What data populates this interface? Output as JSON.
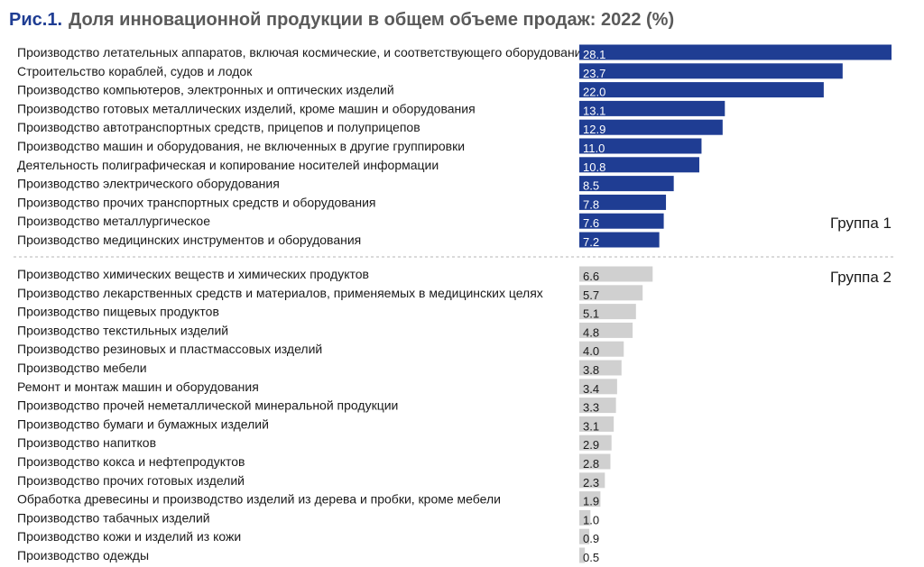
{
  "figure": {
    "number": "Рис.1.",
    "title": "Доля инновационной продукции в общем объеме продаж: 2022 (%)"
  },
  "colors": {
    "group1": "#1f3d93",
    "group2": "#d0d0d0",
    "title_number": "#1f3d93",
    "title_text": "#5a5a5a"
  },
  "chart_data": {
    "type": "bar",
    "orientation": "horizontal",
    "title": "Доля инновационной продукции в общем объеме продаж: 2022 (%)",
    "groups": [
      {
        "name": "Группа 1",
        "color": "#1f3d93",
        "categories": [
          "Производство летательных аппаратов, включая космические, и соответствующего оборудования",
          "Строительство кораблей, судов и лодок",
          "Производство компьютеров, электронных и оптических изделий",
          "Производство готовых металлических изделий, кроме машин и оборудования",
          "Производство автотранспортных средств, прицепов и полуприцепов",
          "Производство машин и оборудования, не включенных в другие группировки",
          "Деятельность полиграфическая и копирование носителей информации",
          "Производство электрического оборудования",
          "Производство прочих транспортных средств и оборудования",
          "Производство металлургическое",
          "Производство медицинских инструментов и оборудования"
        ],
        "values": [
          28.1,
          23.7,
          22.0,
          13.1,
          12.9,
          11.0,
          10.8,
          8.5,
          7.8,
          7.6,
          7.2
        ]
      },
      {
        "name": "Группа 2",
        "color": "#d0d0d0",
        "categories": [
          "Производство химических веществ и химических продуктов",
          "Производство лекарственных средств и материалов, применяемых в медицинских целях",
          "Производство пищевых продуктов",
          "Производство текстильных изделий",
          "Производство резиновых и пластмассовых изделий",
          "Производство мебели",
          "Ремонт и монтаж машин и оборудования",
          "Производство прочей неметаллической минеральной продукции",
          "Производство бумаги и бумажных изделий",
          "Производство напитков",
          "Производство кокса и нефтепродуктов",
          "Производство прочих готовых изделий",
          "Обработка древесины и производство изделий из дерева и пробки, кроме мебели",
          "Производство табачных изделий",
          "Производство кожи и изделий из кожи",
          "Производство одежды"
        ],
        "values": [
          6.6,
          5.7,
          5.1,
          4.8,
          4.0,
          3.8,
          3.4,
          3.3,
          3.1,
          2.9,
          2.8,
          2.3,
          1.9,
          1.0,
          0.9,
          0.5
        ]
      }
    ],
    "value_labels": [
      [
        "28.1",
        "23.7",
        "22.0",
        "13.1",
        "12.9",
        "11.0",
        "10.8",
        "8.5",
        "7.8",
        "7.6",
        "7.2"
      ],
      [
        "6.6",
        "5.7",
        "5.1",
        "4.8",
        "4.0",
        "3.8",
        "3.4",
        "3.3",
        "3.1",
        "2.9",
        "2.8",
        "2.3",
        "1.9",
        "1.0",
        "0.9",
        "0.5"
      ]
    ],
    "xlim": [
      0,
      28.1
    ],
    "grid": false,
    "axes_visible": false,
    "group_separator": "dashed"
  }
}
